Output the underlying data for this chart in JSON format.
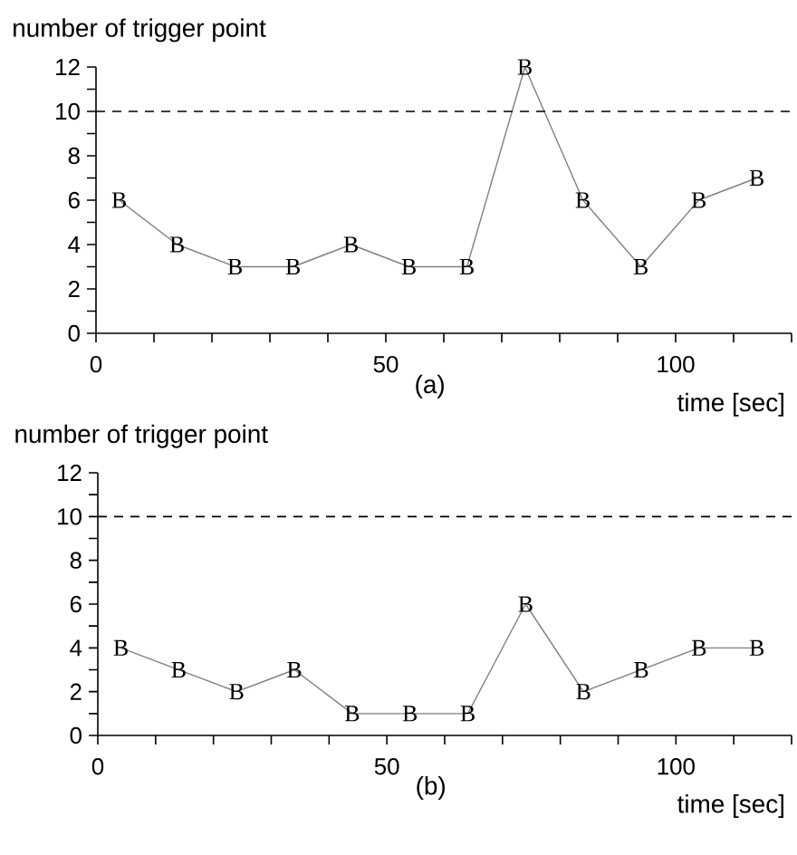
{
  "chart_data": [
    {
      "type": "line",
      "xlabel": "time [sec]",
      "ylabel": "number of trigger point",
      "annotations": [
        "(a)"
      ],
      "x": [
        4,
        14,
        24,
        34,
        44,
        54,
        64,
        74,
        84,
        94,
        104,
        114
      ],
      "series": [
        {
          "name": "B",
          "color": "#808080",
          "values": [
            6,
            4,
            3,
            3,
            4,
            3,
            3,
            12,
            6,
            3,
            6,
            7
          ]
        }
      ],
      "xlim": [
        0,
        120
      ],
      "ylim": [
        0,
        12
      ],
      "xticks": [
        0,
        {
          "value": 10,
          "label": null
        },
        {
          "value": 20,
          "label": null
        },
        {
          "value": 30,
          "label": null
        },
        {
          "value": 40,
          "label": null
        },
        50,
        {
          "value": 60,
          "label": null
        },
        {
          "value": 70,
          "label": null
        },
        {
          "value": 80,
          "label": null
        },
        {
          "value": 90,
          "label": null
        },
        100,
        {
          "value": 110,
          "label": null
        },
        {
          "value": 120,
          "label": null
        }
      ],
      "yticks": [
        0,
        {
          "value": 1,
          "label": null
        },
        2,
        {
          "value": 3,
          "label": null
        },
        4,
        {
          "value": 5,
          "label": null
        },
        6,
        {
          "value": 7,
          "label": null
        },
        8,
        {
          "value": 9,
          "label": null
        },
        10,
        {
          "value": 11,
          "label": null
        },
        12
      ],
      "ref_lines": [
        {
          "axis": "y",
          "value": 10,
          "color": "#000000",
          "line_style": "dashed"
        }
      ],
      "line_style": "solid"
    },
    {
      "type": "line",
      "xlabel": "time [sec]",
      "ylabel": "number of trigger point",
      "annotations": [
        "(b)"
      ],
      "x": [
        4,
        14,
        24,
        34,
        44,
        54,
        64,
        74,
        84,
        94,
        104,
        114
      ],
      "series": [
        {
          "name": "B",
          "color": "#808080",
          "values": [
            4,
            3,
            2,
            3,
            1,
            1,
            1,
            6,
            2,
            3,
            4,
            4
          ]
        }
      ],
      "xlim": [
        0,
        120
      ],
      "ylim": [
        0,
        12
      ],
      "xticks": [
        0,
        {
          "value": 10,
          "label": null
        },
        {
          "value": 20,
          "label": null
        },
        {
          "value": 30,
          "label": null
        },
        {
          "value": 40,
          "label": null
        },
        50,
        {
          "value": 60,
          "label": null
        },
        {
          "value": 70,
          "label": null
        },
        {
          "value": 80,
          "label": null
        },
        {
          "value": 90,
          "label": null
        },
        100,
        {
          "value": 110,
          "label": null
        },
        {
          "value": 120,
          "label": null
        }
      ],
      "yticks": [
        0,
        {
          "value": 1,
          "label": null
        },
        2,
        {
          "value": 3,
          "label": null
        },
        4,
        {
          "value": 5,
          "label": null
        },
        6,
        {
          "value": 7,
          "label": null
        },
        8,
        {
          "value": 9,
          "label": null
        },
        10,
        {
          "value": 11,
          "label": null
        },
        12
      ],
      "ref_lines": [
        {
          "axis": "y",
          "value": 10,
          "color": "#000000",
          "line_style": "dashed"
        }
      ],
      "line_style": "solid"
    }
  ]
}
